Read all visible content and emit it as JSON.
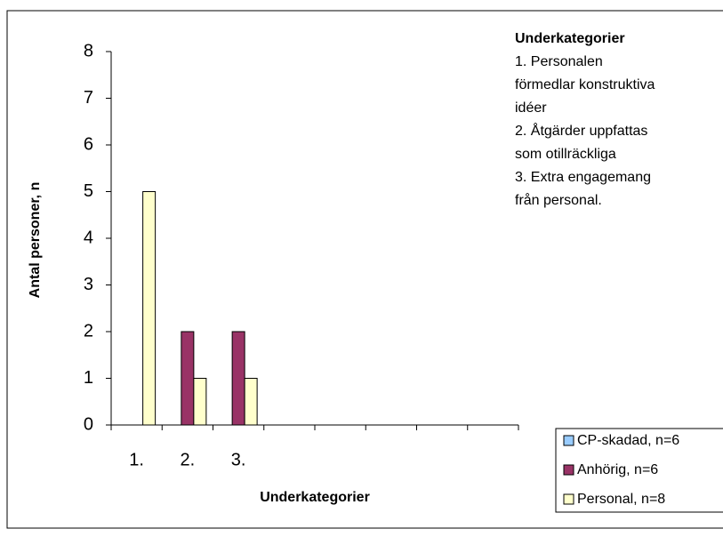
{
  "chart_data": {
    "type": "bar",
    "y_label": "Antal personer, n",
    "x_label": "Underkategorier",
    "categories": [
      "1.",
      "2.",
      "3.",
      null,
      null,
      null,
      null,
      null
    ],
    "series": [
      {
        "name": "CP-skadad, n=6",
        "color": "#99ccff",
        "values": [
          0,
          0,
          0,
          null,
          null,
          null,
          null,
          null
        ]
      },
      {
        "name": "Anhörig, n=6",
        "color": "#993366",
        "values": [
          0,
          2,
          2,
          null,
          null,
          null,
          null,
          null
        ]
      },
      {
        "name": "Personal, n=8",
        "color": "#ffffcc",
        "values": [
          5,
          1,
          1,
          null,
          null,
          null,
          null,
          null
        ]
      }
    ],
    "ylim": [
      0,
      8
    ],
    "yticks": [
      0,
      1,
      2,
      3,
      4,
      5,
      6,
      7,
      8
    ],
    "annotation": {
      "title": "Underkategorier",
      "lines": [
        "1. Personalen",
        "förmedlar konstruktiva",
        "idéer",
        "2. Åtgärder uppfattas",
        "som otillräckliga",
        "3. Extra engagemang",
        "från personal."
      ]
    }
  }
}
